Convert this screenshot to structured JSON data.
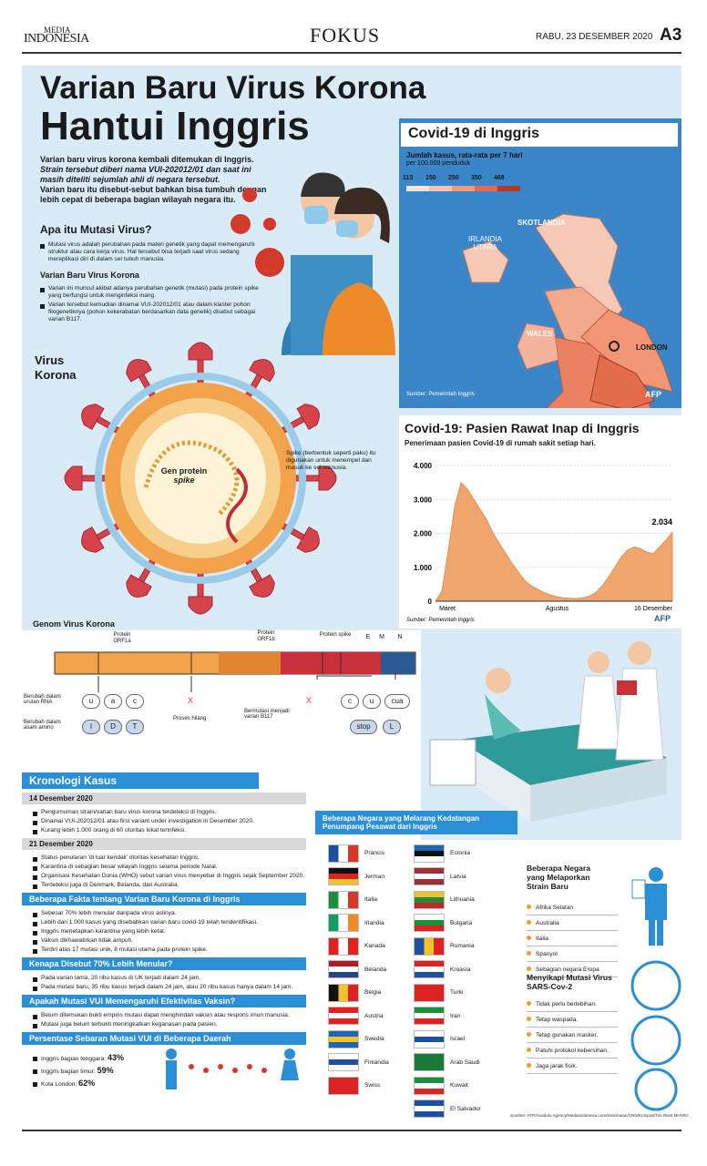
{
  "header": {
    "logo_top": "MEDIA",
    "logo": "INDONESIA",
    "section": "FOKUS",
    "date": "RABU, 23 DESEMBER 2020",
    "page": "A3"
  },
  "title": {
    "line1": "Varian Baru Virus Korona",
    "line2": "Hantui Inggris"
  },
  "intro": [
    "Varian baru virus korona kembali ditemukan di Inggris.",
    "Strain tersebut diberi nama VUI-202012/01 dan saat ini masih diteliti sejumlah ahli di negara tersebut.",
    "Varian baru itu disebut-sebut bahkan bisa tumbuh dengan lebih cepat di beberapa bagian wilayah negara itu."
  ],
  "mutation": {
    "heading": "Apa itu Mutasi Virus?",
    "bullets": [
      "Mutasi virus adalah perubahan pada materi genetik yang dapat memengaruhi struktur atau cara kerja virus. Hal tersebut bisa terjadi saat virus sedang mereplikasi diri di dalam sel tubuh manusia."
    ]
  },
  "variant": {
    "heading": "Varian Baru Virus Korona",
    "bullets": [
      "Varian ini muncul akibat adanya perubahan genetik (mutasi) pada protein spike yang berfungsi untuk menginfeksi inang.",
      "Varian tersebut kemudian dinamai VUI-202012/01 atau dalam klaster pohon filogenetiknya (pohon kekerabatan berdasarkan data genetik) disebut sebagai varian B117."
    ]
  },
  "virus": {
    "label": "Virus Korona",
    "gene_label": "Gen protein",
    "gene_italic": "spike",
    "spike_note": "Spike (berbentuk seperti paku) itu digunakan untuk menempel dan masuk ke sel manusia."
  },
  "map": {
    "title": "Covid-19 di Inggris",
    "subtitle": "Jumlah kasus, rata-rata per 7 hari",
    "subtitle2": "per 100.000 penduduk",
    "legend": [
      "113",
      "150",
      "250",
      "350",
      "468"
    ],
    "places": [
      "SKOTLANDIA",
      "IRLANDIA UTARA",
      "WALES",
      "LONDON"
    ],
    "source": "Sumber: Pemerintah Inggris",
    "credit": "AFP"
  },
  "chart": {
    "type": "area",
    "title": "Covid-19: Pasien Rawat Inap di Inggris",
    "subtitle": "Penerimaan pasien Covid-19 di rumah sakit setiap hari.",
    "color": "#f0a56c",
    "categories": [
      null,
      "Maret",
      null,
      null,
      null,
      null,
      null,
      null,
      null,
      null,
      null,
      null,
      null,
      null,
      null,
      null,
      null,
      null,
      null,
      "Agustus",
      null,
      null,
      null,
      null,
      null,
      null,
      null,
      null,
      null,
      null,
      null,
      null,
      null,
      null,
      null,
      null,
      null,
      "16 Desember"
    ],
    "values": [
      0,
      300,
      1500,
      2800,
      3500,
      3300,
      3000,
      2700,
      2400,
      2000,
      1700,
      1400,
      1100,
      850,
      600,
      450,
      350,
      250,
      180,
      130,
      100,
      90,
      80,
      100,
      150,
      250,
      450,
      700,
      1000,
      1300,
      1500,
      1600,
      1550,
      1450,
      1400,
      1600,
      1800,
      2034
    ],
    "value_label": "2.034",
    "ylim": [
      0,
      4000
    ],
    "yticks": [
      0,
      {
        "value": 1000,
        "label": "1.000"
      },
      {
        "value": 2000,
        "label": "2.000"
      },
      {
        "value": 3000,
        "label": "3.000"
      },
      {
        "value": 4000,
        "label": "4.000"
      }
    ],
    "source": "Sumber: Pemerintah Inggris",
    "credit": "AFP"
  },
  "genome": {
    "title": "Genom Virus Korona",
    "proteins": [
      "Protein ORF1a",
      "Protein ORF1b",
      "Protein spike",
      "E",
      "M",
      "N"
    ],
    "rna_label": "Berubah dalam urutan RNA",
    "amino_label": "Berubah dalam asam amino",
    "lost": "Proses hilang",
    "mutated": "Bermutasi menjadi varian B117",
    "rna": [
      "u",
      "a",
      "c"
    ],
    "amino": [
      "I",
      "D",
      "T"
    ],
    "rna2": [
      "c",
      "u",
      "cua"
    ],
    "amino2": [
      "stop",
      "L"
    ],
    "x": "X"
  },
  "timeline": {
    "title": "Kronologi Kasus",
    "groups": [
      {
        "date": "14 Desember 2020",
        "bullets": [
          "Pengumuman strain/varian baru virus korona terdeteksi di Inggris.",
          "Dinamai VUI-202012/01 atau first variant under investigation in Desember 2020.",
          "Kurang lebih 1.000 orang di 60 otoritas lokal terinfeksi."
        ]
      },
      {
        "date": "21 Desember 2020",
        "bullets": [
          "Status penularan 'di luar kendali' otoritas kesehatan Inggris.",
          "Karantina di sebagian besar wilayah Inggris selama periode Natal.",
          "Organisasi Kesehatan Dunia (WHO) sebut varian virus menyebar di Inggris sejak September 2020.",
          "Terdeteksi juga di Denmark, Belanda, dan Australia."
        ]
      }
    ]
  },
  "facts": [
    {
      "heading": "Beberapa Fakta tentang Varian Baru Korona di Inggris",
      "bullets": [
        "Sebesar 70% lebih menular daripada virus aslinya.",
        "Lebih dari 1.000 kasus yang disebabkan varian baru covid-19 telah teridentifikasi.",
        "Inggris menetapkan karantina yang lebih ketat.",
        "Vaksin dikhawatirkan tidak ampuh.",
        "Terdiri atas 17 mutasi unik, 8 mutasi utama pada protein spike."
      ]
    },
    {
      "heading": "Kenapa Disebut 70% Lebih Menular?",
      "bullets": [
        "Pada varian lama, 20 ribu kasus di UK terjadi dalam 24 jam.",
        "Pada mutasi baru, 35 ribu kasus terjadi dalam 24 jam, atau 20 ribu kasus hanya dalam 14 jam."
      ]
    },
    {
      "heading": "Apakah Mutasi VUI Memengaruhi Efektivitas Vaksin?",
      "bullets": [
        "Belum ditemukan bukti empiris mutasi dapat menghindari vaksin atau respons imun manusia.",
        "Mutasi juga belum terbukti meningkatkan keganasan pada pasien."
      ]
    }
  ],
  "spread": {
    "heading": "Persentase Sebaran Mutasi VUI di Beberapa Daerah",
    "items": [
      {
        "label": "Inggris bagian tenggara:",
        "value": "43%"
      },
      {
        "label": "Inggris bagian timur:",
        "value": "59%"
      },
      {
        "label": "Kota London:",
        "value": "62%"
      }
    ]
  },
  "bans": {
    "title": "Beberapa Negara yang Melarang Kedatangan Penumpang Pesawat dari Inggris",
    "left": [
      "Prancis",
      "Jerman",
      "Italia",
      "Irlandia",
      "Kanada",
      "Belanda",
      "Belgia",
      "Austria",
      "Swedia",
      "Finlandia",
      "Swiss"
    ],
    "right": [
      "Estonia",
      "Latvia",
      "Lithuania",
      "Bulgaria",
      "Rumania",
      "Kroasia",
      "Turki",
      "Iran",
      "Israel",
      "Arab Saudi",
      "Kuwait",
      "El Salvador"
    ]
  },
  "reporting": {
    "title": "Beberapa Negara yang Melaporkan Strain Baru",
    "items": [
      "Afrika Selatan",
      "Australia",
      "Italia",
      "Spanyol",
      "Sebagian negara Eropa"
    ]
  },
  "response": {
    "title": "Menyikapi Mutasi Virus SARS-Cov-2",
    "items": [
      "Tidak perlu berlebihan.",
      "Tetap waspada.",
      "Tetap gunakan masker.",
      "Patuhi protokol kebersihan.",
      "Jaga jarak fisik."
    ]
  },
  "footer": "Sumber: AFP/Anadolu Agency/Mediaindonesia.com/Kesehatan/CNN/Kompas/Tim Riset MI-NRC"
}
